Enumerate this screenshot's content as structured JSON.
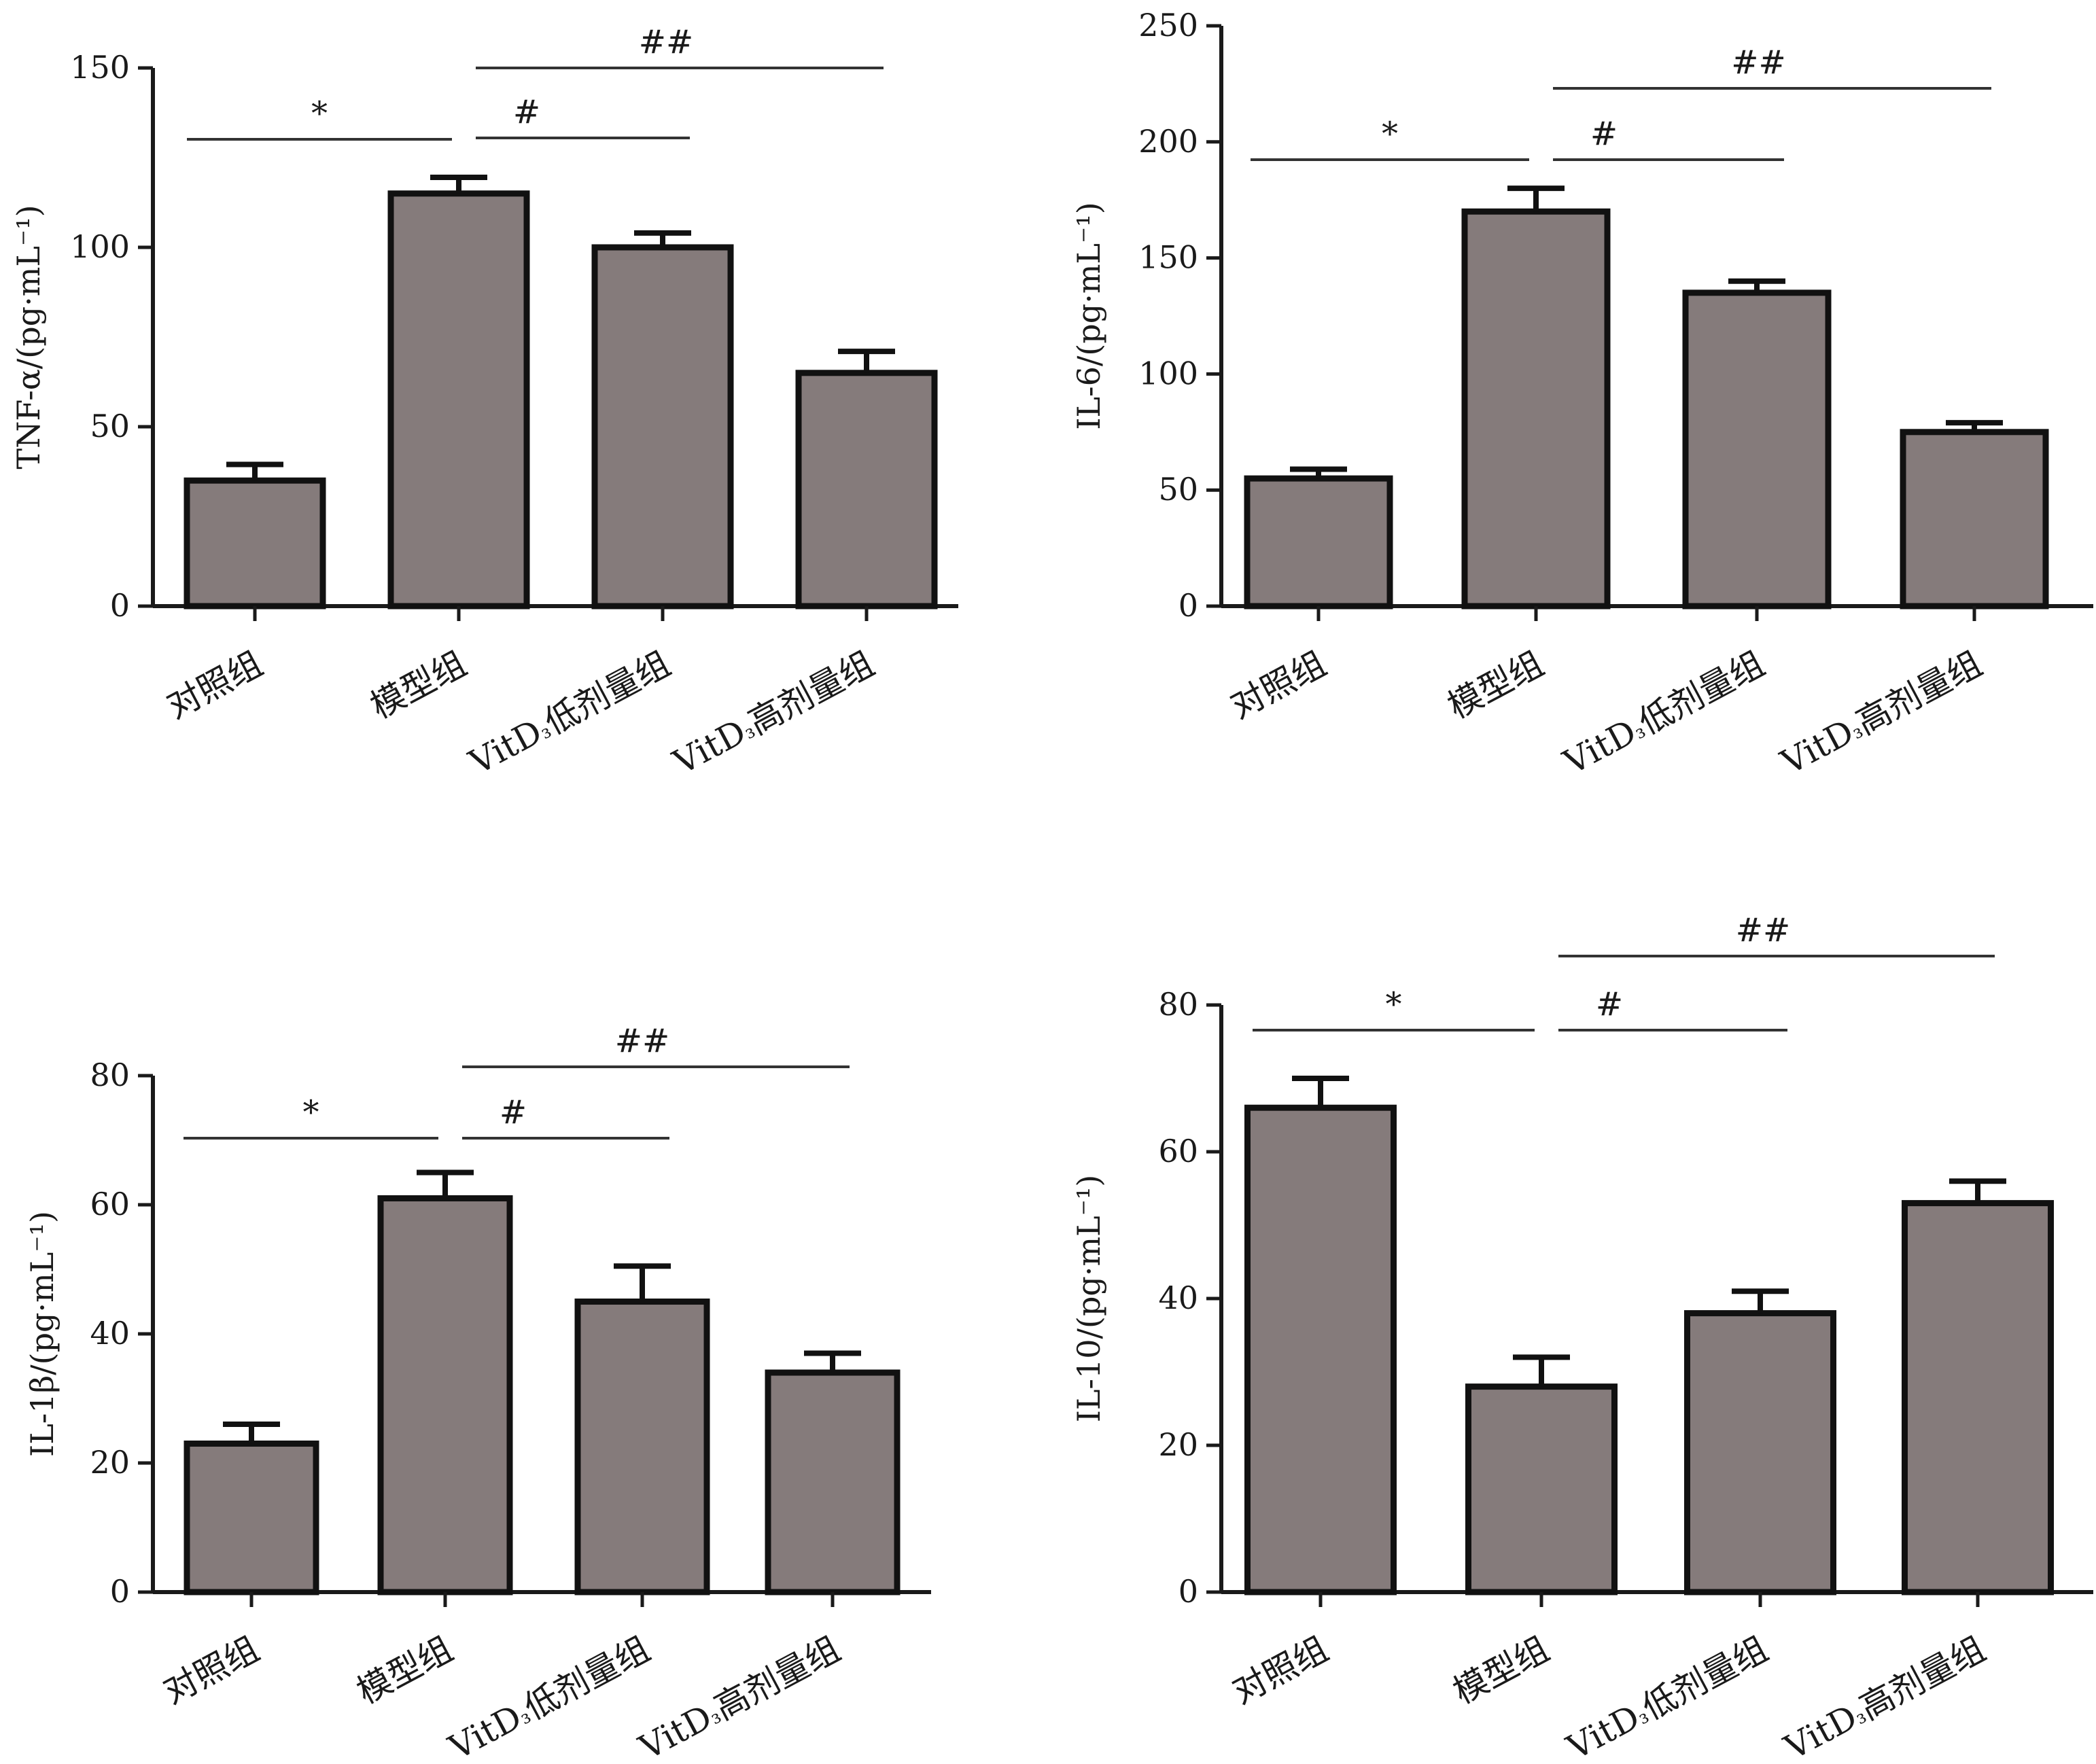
{
  "chart_data": [
    {
      "type": "bar",
      "categories": [
        "对照组",
        "模型组",
        "VitD₃低剂量组",
        "VitD₃高剂量组"
      ],
      "values": [
        35,
        115,
        100,
        65
      ],
      "errors": [
        4.5,
        4.5,
        4,
        6
      ],
      "ylabel": "TNF-α/(pg·mL⁻¹)",
      "ylim": [
        0,
        150
      ],
      "yticks": [
        0,
        50,
        100,
        150
      ],
      "bar_color": "#857b7b",
      "significance": [
        {
          "label": "*",
          "from": 0,
          "to": 1
        },
        {
          "label": "#",
          "from": 1,
          "to": 2
        },
        {
          "label": "##",
          "from": 1,
          "to": 3
        }
      ]
    },
    {
      "type": "bar",
      "categories": [
        "对照组",
        "模型组",
        "VitD₃低剂量组",
        "VitD₃高剂量组"
      ],
      "values": [
        55,
        170,
        135,
        75
      ],
      "errors": [
        4,
        10,
        5,
        4
      ],
      "ylabel": "IL-6/(pg·mL⁻¹)",
      "ylim": [
        0,
        250
      ],
      "yticks": [
        0,
        50,
        100,
        150,
        200,
        250
      ],
      "bar_color": "#857b7b",
      "significance": [
        {
          "label": "*",
          "from": 0,
          "to": 1
        },
        {
          "label": "#",
          "from": 1,
          "to": 2
        },
        {
          "label": "##",
          "from": 1,
          "to": 3
        }
      ]
    },
    {
      "type": "bar",
      "categories": [
        "对照组",
        "模型组",
        "VitD₃低剂量组",
        "VitD₃高剂量组"
      ],
      "values": [
        23,
        61,
        45,
        34
      ],
      "errors": [
        3,
        4,
        5.5,
        3
      ],
      "ylabel": "IL-1β/(pg·mL⁻¹)",
      "ylim": [
        0,
        80
      ],
      "yticks": [
        0,
        20,
        40,
        60,
        80
      ],
      "bar_color": "#857b7b",
      "significance": [
        {
          "label": "*",
          "from": 0,
          "to": 1
        },
        {
          "label": "#",
          "from": 1,
          "to": 2
        },
        {
          "label": "##",
          "from": 1,
          "to": 3
        }
      ]
    },
    {
      "type": "bar",
      "categories": [
        "对照组",
        "模型组",
        "VitD₃低剂量组",
        "VitD₃高剂量组"
      ],
      "values": [
        66,
        28,
        38,
        53
      ],
      "errors": [
        4,
        4,
        3,
        3
      ],
      "ylabel": "IL-10/(pg·mL⁻¹)",
      "ylim": [
        0,
        80
      ],
      "yticks": [
        0,
        20,
        40,
        60,
        80
      ],
      "bar_color": "#857b7b",
      "significance": [
        {
          "label": "*",
          "from": 0,
          "to": 1
        },
        {
          "label": "#",
          "from": 1,
          "to": 2
        },
        {
          "label": "##",
          "from": 1,
          "to": 3
        }
      ]
    }
  ]
}
